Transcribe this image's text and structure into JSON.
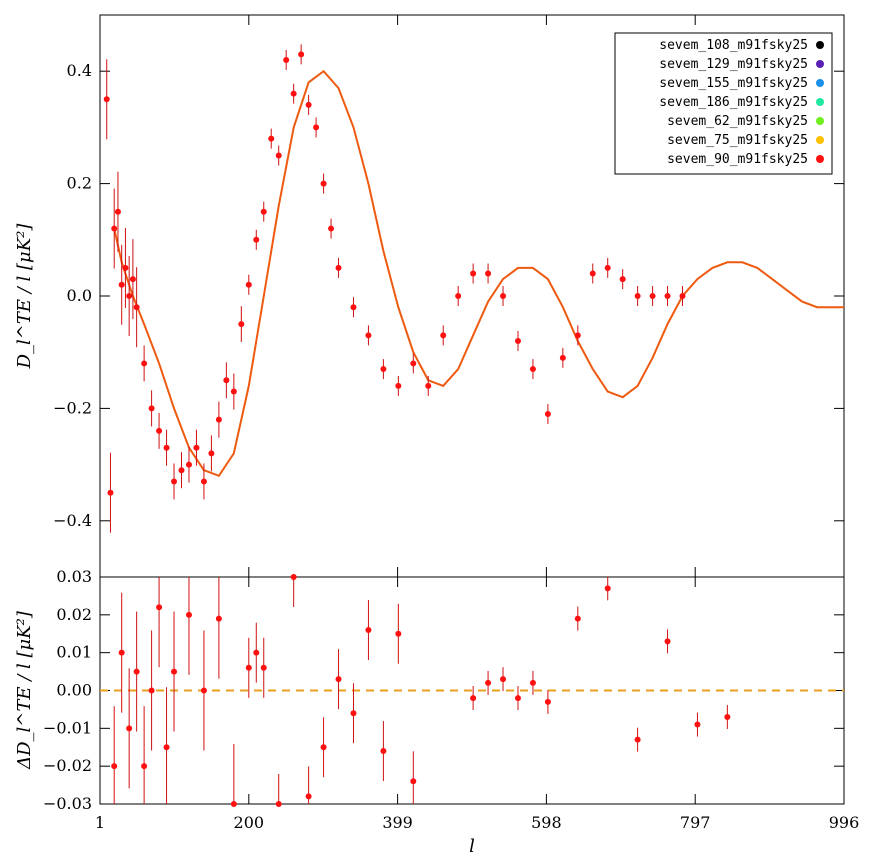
{
  "chart_data": [
    {
      "panel": "top",
      "type": "scatter",
      "ylabel": "D_l^TE / l [μK²]",
      "xlim": [
        1,
        996
      ],
      "ylim": [
        -0.5,
        0.5
      ],
      "x_ticks": [
        1,
        200,
        399,
        598,
        797,
        996
      ],
      "y_ticks": [
        -0.4,
        -0.2,
        0.0,
        0.2,
        0.4
      ],
      "y_tick_labels": [
        "−0.4",
        "−0.2",
        "0.0",
        "0.2",
        "0.4"
      ],
      "legend": {
        "position": "top-right",
        "entries": [
          {
            "name": "sevem_108_m91fsky25",
            "color": "#000000"
          },
          {
            "name": "sevem_129_m91fsky25",
            "color": "#5a20b4"
          },
          {
            "name": "sevem_155_m91fsky25",
            "color": "#1a90e8"
          },
          {
            "name": "sevem_186_m91fsky25",
            "color": "#20e8a0"
          },
          {
            "name": "sevem_62_m91fsky25",
            "color": "#70f020"
          },
          {
            "name": "sevem_75_m91fsky25",
            "color": "#ffc000"
          },
          {
            "name": "sevem_90_m91fsky25",
            "color": "#ff1010"
          }
        ]
      },
      "model_curve": {
        "color": "#ee5a10",
        "x": [
          20,
          30,
          45,
          60,
          80,
          100,
          120,
          140,
          160,
          180,
          200,
          220,
          240,
          260,
          280,
          300,
          320,
          340,
          360,
          380,
          400,
          420,
          440,
          460,
          480,
          500,
          520,
          540,
          560,
          580,
          600,
          620,
          640,
          660,
          680,
          700,
          720,
          740,
          760,
          780,
          800,
          820,
          840,
          860,
          880,
          900,
          920,
          940,
          960,
          980,
          996
        ],
        "y": [
          0.12,
          0.06,
          0.0,
          -0.05,
          -0.12,
          -0.2,
          -0.27,
          -0.31,
          -0.32,
          -0.28,
          -0.16,
          0.0,
          0.16,
          0.3,
          0.38,
          0.4,
          0.37,
          0.3,
          0.2,
          0.08,
          -0.02,
          -0.1,
          -0.15,
          -0.16,
          -0.13,
          -0.07,
          -0.01,
          0.03,
          0.05,
          0.05,
          0.03,
          -0.02,
          -0.08,
          -0.13,
          -0.17,
          -0.18,
          -0.16,
          -0.11,
          -0.05,
          0.0,
          0.03,
          0.05,
          0.06,
          0.06,
          0.05,
          0.03,
          0.01,
          -0.01,
          -0.02,
          -0.02,
          -0.02
        ]
      },
      "points": {
        "x": [
          10,
          15,
          20,
          25,
          30,
          35,
          40,
          45,
          50,
          60,
          70,
          80,
          90,
          100,
          110,
          120,
          130,
          140,
          150,
          160,
          170,
          180,
          190,
          200,
          210,
          220,
          230,
          240,
          250,
          260,
          270,
          280,
          290,
          300,
          310,
          320,
          340,
          360,
          380,
          400,
          420,
          440,
          460,
          480,
          500,
          520,
          540,
          560,
          580,
          600,
          620,
          640,
          660,
          680,
          700,
          720,
          740,
          760,
          780,
          800,
          840,
          880,
          920,
          950,
          980
        ],
        "y": [
          0.35,
          -0.35,
          0.12,
          0.15,
          0.02,
          0.05,
          0.0,
          0.03,
          -0.02,
          -0.12,
          -0.2,
          -0.24,
          -0.27,
          -0.33,
          -0.31,
          -0.3,
          -0.27,
          -0.33,
          -0.28,
          -0.22,
          -0.15,
          -0.17,
          -0.05,
          0.02,
          0.1,
          0.15,
          0.28,
          0.25,
          0.42,
          0.36,
          0.43,
          0.34,
          0.3,
          0.2,
          0.12,
          0.05,
          -0.02,
          -0.07,
          -0.13,
          -0.16,
          -0.12,
          -0.16,
          -0.07,
          0.0,
          0.04,
          0.04,
          0.0,
          -0.08,
          -0.13,
          -0.21,
          -0.11,
          -0.07,
          0.04,
          0.05,
          0.03,
          0.0,
          0.0,
          0.0,
          0.0,
          0.0,
          0.0,
          0.0,
          0.0,
          0.0,
          0.0
        ]
      }
    },
    {
      "panel": "bottom",
      "type": "scatter",
      "xlabel": "l",
      "ylabel": "ΔD_l^TE / l [μK²]",
      "xlim": [
        1,
        996
      ],
      "ylim": [
        -0.03,
        0.03
      ],
      "x_ticks": [
        1,
        200,
        399,
        598,
        797,
        996
      ],
      "y_ticks": [
        -0.03,
        -0.02,
        -0.01,
        0.0,
        0.01,
        0.02,
        0.03
      ],
      "y_tick_labels": [
        "−0.03",
        "−0.02",
        "−0.01",
        "0.00",
        "0.01",
        "0.02",
        "0.03"
      ],
      "reference_line": {
        "y": 0.0,
        "style": "dashed",
        "color": "#e8a020"
      },
      "points": {
        "x": [
          20,
          30,
          40,
          50,
          60,
          70,
          80,
          90,
          100,
          120,
          140,
          160,
          180,
          200,
          210,
          220,
          240,
          260,
          280,
          300,
          320,
          340,
          360,
          380,
          400,
          420,
          500,
          520,
          540,
          560,
          580,
          600,
          640,
          680,
          720,
          760,
          800,
          840,
          880,
          950
        ],
        "y": [
          -0.02,
          0.01,
          -0.01,
          0.005,
          -0.02,
          0.0,
          0.022,
          -0.015,
          0.005,
          0.02,
          0.0,
          0.019,
          -0.03,
          0.006,
          0.01,
          0.006,
          -0.03,
          0.03,
          -0.028,
          -0.015,
          0.003,
          -0.006,
          0.016,
          -0.016,
          0.015,
          -0.024,
          -0.002,
          0.002,
          0.003,
          -0.002,
          0.002,
          -0.003,
          0.019,
          0.027,
          -0.013,
          0.013,
          -0.009,
          -0.007,
          0.0,
          0.0
        ]
      }
    }
  ]
}
